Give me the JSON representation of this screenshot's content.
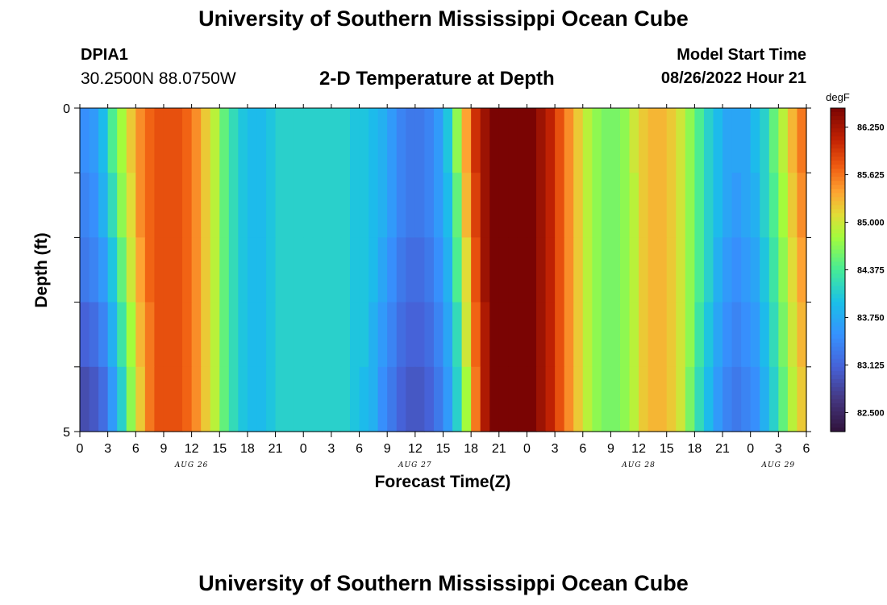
{
  "header": {
    "title": "University of Southern Mississippi Ocean Cube",
    "station_id": "DPIA1",
    "coordinates": "30.2500N  88.0750W",
    "subtitle": "2-D Temperature at Depth",
    "model_start_label": "Model Start Time",
    "model_start_value": "08/26/2022 Hour 21"
  },
  "footer": {
    "title": "University of Southern Mississippi Ocean Cube"
  },
  "chart_data": {
    "type": "heatmap",
    "xlabel": "Forecast Time(Z)",
    "ylabel": "Depth (ft)",
    "x_start_hour": 0,
    "x_hours": [
      0,
      1,
      2,
      3,
      4,
      5,
      6,
      7,
      8,
      9,
      10,
      11,
      12,
      13,
      14,
      15,
      16,
      17,
      18,
      19,
      20,
      21,
      22,
      23,
      24,
      25,
      26,
      27,
      28,
      29,
      30,
      31,
      32,
      33,
      34,
      35,
      36,
      37,
      38,
      39,
      40,
      41,
      42,
      43,
      44,
      45,
      46,
      47,
      48,
      49,
      50,
      51,
      52,
      53,
      54,
      55,
      56,
      57,
      58,
      59,
      60,
      61,
      62,
      63,
      64,
      65,
      66,
      67,
      68,
      69,
      70,
      71,
      72,
      73,
      74,
      75,
      76,
      77,
      78
    ],
    "x_tick_labels": [
      "0",
      "3",
      "6",
      "9",
      "12",
      "15",
      "18",
      "21",
      "0",
      "3",
      "6",
      "9",
      "12",
      "15",
      "18",
      "21",
      "0",
      "3",
      "6",
      "9",
      "12",
      "15",
      "18",
      "21",
      "0",
      "3",
      "6"
    ],
    "day_labels": [
      {
        "label": "AUG 26",
        "hour": 12
      },
      {
        "label": "AUG 27",
        "hour": 36
      },
      {
        "label": "AUG 28",
        "hour": 60
      },
      {
        "label": "AUG 29",
        "hour": 75
      }
    ],
    "y_tick_labels": [
      "0",
      "5"
    ],
    "ylim": [
      0,
      5
    ],
    "depth_layers": [
      0,
      1,
      2,
      3,
      4,
      5
    ],
    "colorbar": {
      "unit": "degF",
      "min": 82.25,
      "max": 86.5,
      "tick_values": [
        82.5,
        83.125,
        83.75,
        84.375,
        85.0,
        85.625,
        86.25
      ],
      "tick_labels": [
        "82.500",
        "83.125",
        "83.750",
        "84.375",
        "85.000",
        "85.625",
        "86.250"
      ]
    },
    "values": [
      [
        83.5,
        83.6,
        83.9,
        84.4,
        84.8,
        85.2,
        85.5,
        85.7,
        85.8,
        85.8,
        85.8,
        85.7,
        85.5,
        85.2,
        84.9,
        84.5,
        84.2,
        84.0,
        83.9,
        83.9,
        84.0,
        84.1,
        84.1,
        84.1,
        84.1,
        84.1,
        84.1,
        84.1,
        84.1,
        84.0,
        84.0,
        83.9,
        83.8,
        83.6,
        83.4,
        83.3,
        83.3,
        83.4,
        83.6,
        84.0,
        84.7,
        85.4,
        86.0,
        86.3,
        86.5,
        86.6,
        86.6,
        86.6,
        86.5,
        86.3,
        86.1,
        85.8,
        85.5,
        85.2,
        84.9,
        84.7,
        84.6,
        84.6,
        84.7,
        85.0,
        85.2,
        85.3,
        85.3,
        85.2,
        85.0,
        84.7,
        84.4,
        84.1,
        83.9,
        83.7,
        83.7,
        83.7,
        83.9,
        84.1,
        84.5,
        84.9,
        85.3,
        85.6,
        85.8
      ],
      [
        83.4,
        83.5,
        83.8,
        84.2,
        84.7,
        85.1,
        85.5,
        85.7,
        85.8,
        85.8,
        85.8,
        85.7,
        85.5,
        85.2,
        84.9,
        84.5,
        84.2,
        84.0,
        83.9,
        83.9,
        84.0,
        84.1,
        84.1,
        84.1,
        84.1,
        84.1,
        84.1,
        84.1,
        84.1,
        84.0,
        84.0,
        83.9,
        83.8,
        83.6,
        83.4,
        83.3,
        83.3,
        83.4,
        83.6,
        83.9,
        84.5,
        85.3,
        85.9,
        86.3,
        86.5,
        86.6,
        86.6,
        86.6,
        86.5,
        86.3,
        86.1,
        85.8,
        85.5,
        85.2,
        84.9,
        84.7,
        84.6,
        84.6,
        84.7,
        84.9,
        85.2,
        85.3,
        85.3,
        85.2,
        85.0,
        84.7,
        84.4,
        84.1,
        83.9,
        83.7,
        83.6,
        83.7,
        83.8,
        84.1,
        84.4,
        84.8,
        85.2,
        85.5,
        85.7
      ],
      [
        83.3,
        83.4,
        83.6,
        84.0,
        84.5,
        85.0,
        85.4,
        85.7,
        85.8,
        85.8,
        85.8,
        85.7,
        85.5,
        85.2,
        84.9,
        84.5,
        84.2,
        84.0,
        83.9,
        83.9,
        84.0,
        84.1,
        84.1,
        84.1,
        84.1,
        84.1,
        84.1,
        84.1,
        84.1,
        84.0,
        84.0,
        83.9,
        83.7,
        83.5,
        83.3,
        83.2,
        83.2,
        83.3,
        83.5,
        83.8,
        84.4,
        85.1,
        85.8,
        86.3,
        86.5,
        86.6,
        86.6,
        86.6,
        86.5,
        86.3,
        86.1,
        85.8,
        85.5,
        85.2,
        84.9,
        84.7,
        84.6,
        84.6,
        84.7,
        84.9,
        85.2,
        85.3,
        85.3,
        85.2,
        85.0,
        84.7,
        84.4,
        84.1,
        83.8,
        83.6,
        83.5,
        83.6,
        83.7,
        84.0,
        84.3,
        84.7,
        85.1,
        85.4,
        85.6
      ],
      [
        83.1,
        83.2,
        83.4,
        83.8,
        84.3,
        84.8,
        85.3,
        85.6,
        85.8,
        85.8,
        85.8,
        85.7,
        85.5,
        85.2,
        84.9,
        84.5,
        84.2,
        84.0,
        83.9,
        83.9,
        84.0,
        84.1,
        84.1,
        84.1,
        84.1,
        84.1,
        84.1,
        84.1,
        84.1,
        84.0,
        84.0,
        83.8,
        83.6,
        83.4,
        83.2,
        83.1,
        83.1,
        83.2,
        83.4,
        83.7,
        84.2,
        85.0,
        85.7,
        86.2,
        86.5,
        86.6,
        86.6,
        86.6,
        86.5,
        86.3,
        86.1,
        85.8,
        85.5,
        85.2,
        84.9,
        84.7,
        84.6,
        84.6,
        84.7,
        84.9,
        85.2,
        85.3,
        85.3,
        85.2,
        85.0,
        84.7,
        84.3,
        84.0,
        83.7,
        83.5,
        83.4,
        83.5,
        83.6,
        83.9,
        84.2,
        84.6,
        85.0,
        85.3,
        85.5
      ],
      [
        82.9,
        83.0,
        83.2,
        83.6,
        84.1,
        84.7,
        85.2,
        85.6,
        85.8,
        85.8,
        85.8,
        85.7,
        85.5,
        85.2,
        84.9,
        84.5,
        84.2,
        84.0,
        83.9,
        83.9,
        84.0,
        84.1,
        84.1,
        84.1,
        84.1,
        84.1,
        84.1,
        84.1,
        84.1,
        84.0,
        83.9,
        83.8,
        83.5,
        83.3,
        83.1,
        83.0,
        83.0,
        83.1,
        83.3,
        83.6,
        84.1,
        84.8,
        85.6,
        86.2,
        86.5,
        86.6,
        86.6,
        86.6,
        86.5,
        86.3,
        86.1,
        85.8,
        85.5,
        85.2,
        84.9,
        84.7,
        84.6,
        84.6,
        84.7,
        84.9,
        85.2,
        85.3,
        85.3,
        85.2,
        85.0,
        84.6,
        84.2,
        83.9,
        83.6,
        83.4,
        83.3,
        83.4,
        83.5,
        83.8,
        84.1,
        84.5,
        84.9,
        85.2,
        85.4
      ]
    ]
  }
}
